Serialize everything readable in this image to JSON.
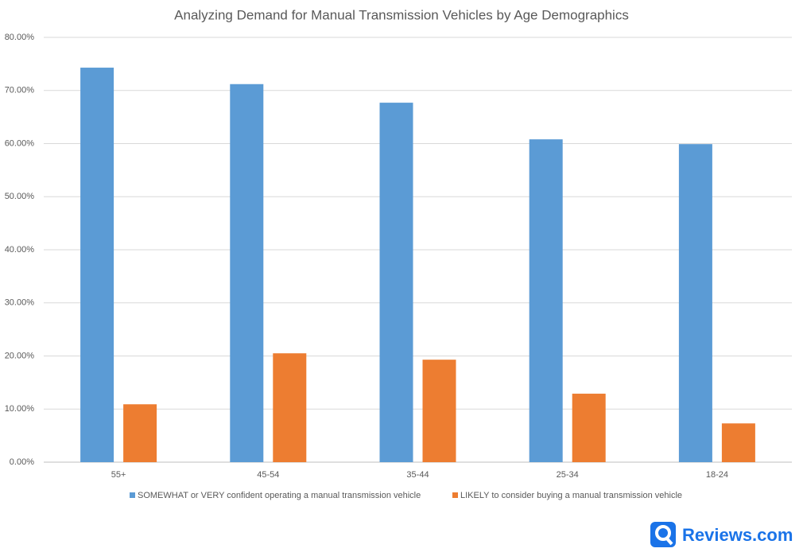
{
  "chart_data": {
    "type": "bar",
    "title": "Analyzing Demand for Manual Transmission Vehicles by Age Demographics",
    "categories": [
      "55+",
      "45-54",
      "35-44",
      "25-34",
      "18-24"
    ],
    "series": [
      {
        "name": "SOMEWHAT or VERY confident operating a manual transmission vehicle",
        "color": "#5b9bd5",
        "values": [
          74.3,
          71.2,
          67.7,
          60.8,
          59.9
        ]
      },
      {
        "name": "LIKELY to consider buying a manual transmission vehicle",
        "color": "#ed7d31",
        "values": [
          10.9,
          20.5,
          19.3,
          12.9,
          7.3
        ]
      }
    ],
    "ylim": [
      0,
      80
    ],
    "yticks": [
      {
        "value": 0,
        "label": "0.00%"
      },
      {
        "value": 10,
        "label": "10.00%"
      },
      {
        "value": 20,
        "label": "20.00%"
      },
      {
        "value": 30,
        "label": "30.00%"
      },
      {
        "value": 40,
        "label": "40.00%"
      },
      {
        "value": 50,
        "label": "50.00%"
      },
      {
        "value": 60,
        "label": "60.00%"
      },
      {
        "value": 70,
        "label": "70.00%"
      },
      {
        "value": 80,
        "label": "80.00%"
      }
    ],
    "grid": true,
    "legend": "bottom",
    "logo": "Reviews.com"
  }
}
